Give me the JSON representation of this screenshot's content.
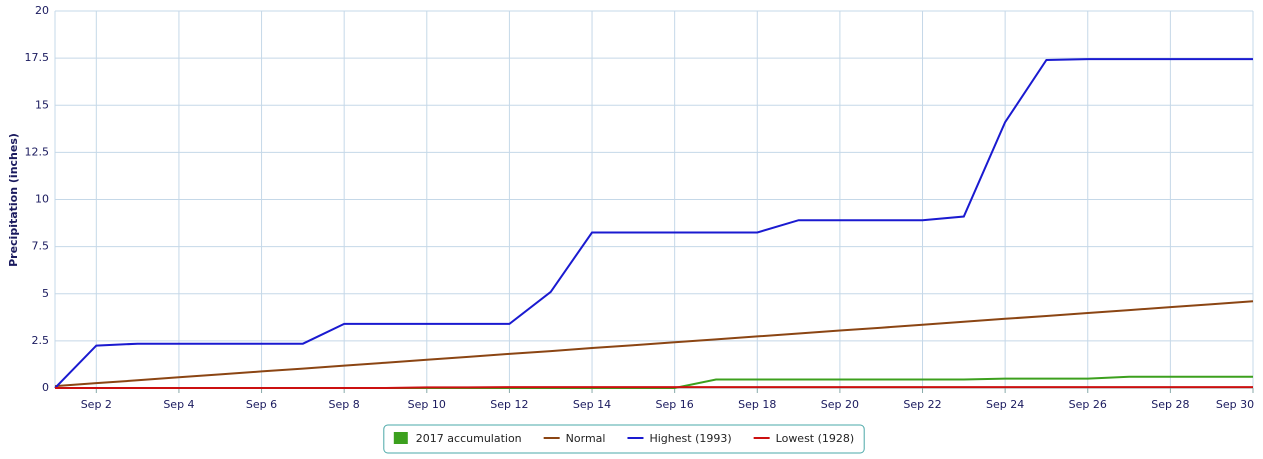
{
  "chart_data": {
    "type": "line",
    "y_label": "Precipitation (inches)",
    "x": [
      null,
      "Sep 2",
      null,
      "Sep 4",
      null,
      "Sep 6",
      null,
      "Sep 8",
      null,
      "Sep 10",
      null,
      "Sep 12",
      null,
      "Sep 14",
      null,
      "Sep 16",
      null,
      "Sep 18",
      null,
      "Sep 20",
      null,
      "Sep 22",
      null,
      "Sep 24",
      null,
      "Sep 26",
      null,
      "Sep 28",
      null,
      "Sep 30"
    ],
    "ylim": [
      0,
      20
    ],
    "yticks": [
      0,
      2.5,
      5,
      7.5,
      10,
      12.5,
      15,
      17.5,
      20
    ],
    "grid": true,
    "series": [
      {
        "name": "2017 accumulation",
        "color": "#3ca01e",
        "legend_symbol": "square",
        "values": [
          0,
          0,
          0,
          0,
          0,
          0,
          0,
          0,
          0,
          0,
          0,
          0,
          0,
          0,
          0,
          0,
          0.45,
          0.45,
          0.45,
          0.45,
          0.45,
          0.45,
          0.45,
          0.5,
          0.5,
          0.5,
          0.6,
          0.6,
          0.6,
          0.6
        ]
      },
      {
        "name": "Normal",
        "color": "#8b4513",
        "values": [
          0.1,
          0.26,
          0.41,
          0.57,
          0.72,
          0.88,
          1.03,
          1.19,
          1.34,
          1.5,
          1.65,
          1.81,
          1.96,
          2.12,
          2.27,
          2.43,
          2.58,
          2.74,
          2.89,
          3.05,
          3.2,
          3.36,
          3.51,
          3.67,
          3.82,
          3.98,
          4.13,
          4.29,
          4.44,
          4.6
        ]
      },
      {
        "name": "Highest (1993)",
        "color": "#1a1ad0",
        "values": [
          0,
          2.25,
          2.35,
          2.35,
          2.35,
          2.35,
          2.35,
          3.4,
          3.4,
          3.4,
          3.4,
          3.4,
          5.1,
          8.25,
          8.25,
          8.25,
          8.25,
          8.25,
          8.9,
          8.9,
          8.9,
          8.9,
          9.1,
          14.1,
          17.4,
          17.45,
          17.45,
          17.45,
          17.45,
          17.45
        ]
      },
      {
        "name": "Lowest (1928)",
        "color": "#cc1010",
        "values": [
          0,
          0,
          0,
          0,
          0,
          0,
          0,
          0,
          0,
          0.03,
          0.03,
          0.05,
          0.05,
          0.05,
          0.05,
          0.05,
          0.05,
          0.05,
          0.05,
          0.05,
          0.05,
          0.05,
          0.05,
          0.05,
          0.05,
          0.05,
          0.05,
          0.05,
          0.05,
          0.05
        ]
      }
    ]
  }
}
